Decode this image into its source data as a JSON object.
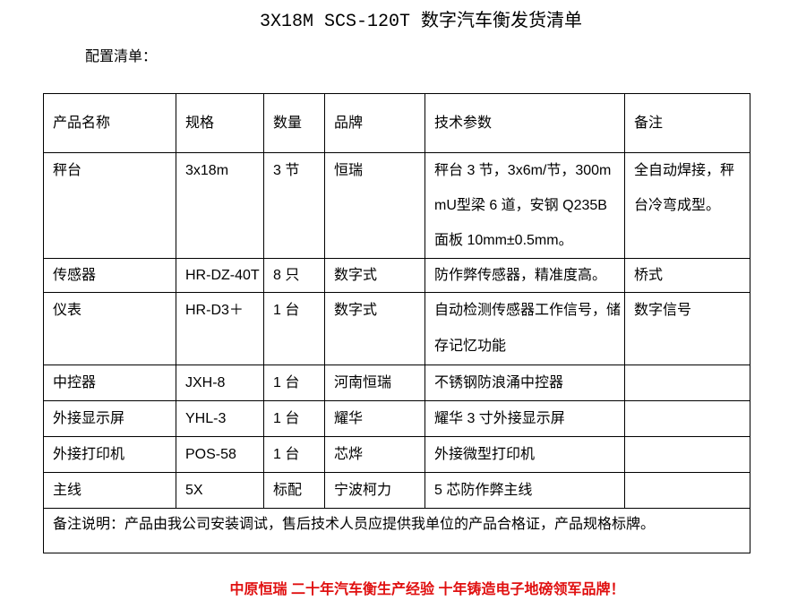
{
  "title": "3X18M SCS-120T 数字汽车衡发货清单",
  "subtitle": "配置清单：",
  "headers": [
    "产品名称",
    "规格",
    "数量",
    "品牌",
    "技术参数",
    "备注"
  ],
  "rows": [
    [
      "秤台",
      "3x18m",
      "3 节",
      "恒瑞",
      "秤台 3 节，3x6m/节，300mmU型梁 6 道，安钢 Q235B 面板 10mm±0.5mm。",
      "全自动焊接，秤台冷弯成型。"
    ],
    [
      "传感器",
      "HR-DZ-40T",
      "8 只",
      "数字式",
      "防作弊传感器，精准度高。",
      "桥式"
    ],
    [
      "仪表",
      "HR-D3＋",
      "1 台",
      "数字式",
      "自动检测传感器工作信号，储存记忆功能",
      "数字信号"
    ],
    [
      "中控器",
      "JXH-8",
      "1 台",
      "河南恒瑞",
      "不锈钢防浪涌中控器",
      ""
    ],
    [
      "外接显示屏",
      "YHL-3",
      "1 台",
      "耀华",
      "耀华 3 寸外接显示屏",
      ""
    ],
    [
      "外接打印机",
      "POS-58",
      "1 台",
      "芯烨",
      "外接微型打印机",
      ""
    ],
    [
      "主线",
      "5X",
      "标配",
      "宁波柯力",
      "5 芯防作弊主线",
      ""
    ]
  ],
  "note": "备注说明：产品由我公司安装调试，售后技术人员应提供我单位的产品合格证，产品规格标牌。",
  "footer": "中原恒瑞 二十年汽车衡生产经验 十年铸造电子地磅领军品牌！",
  "colors": {
    "footer": "#e01010"
  }
}
